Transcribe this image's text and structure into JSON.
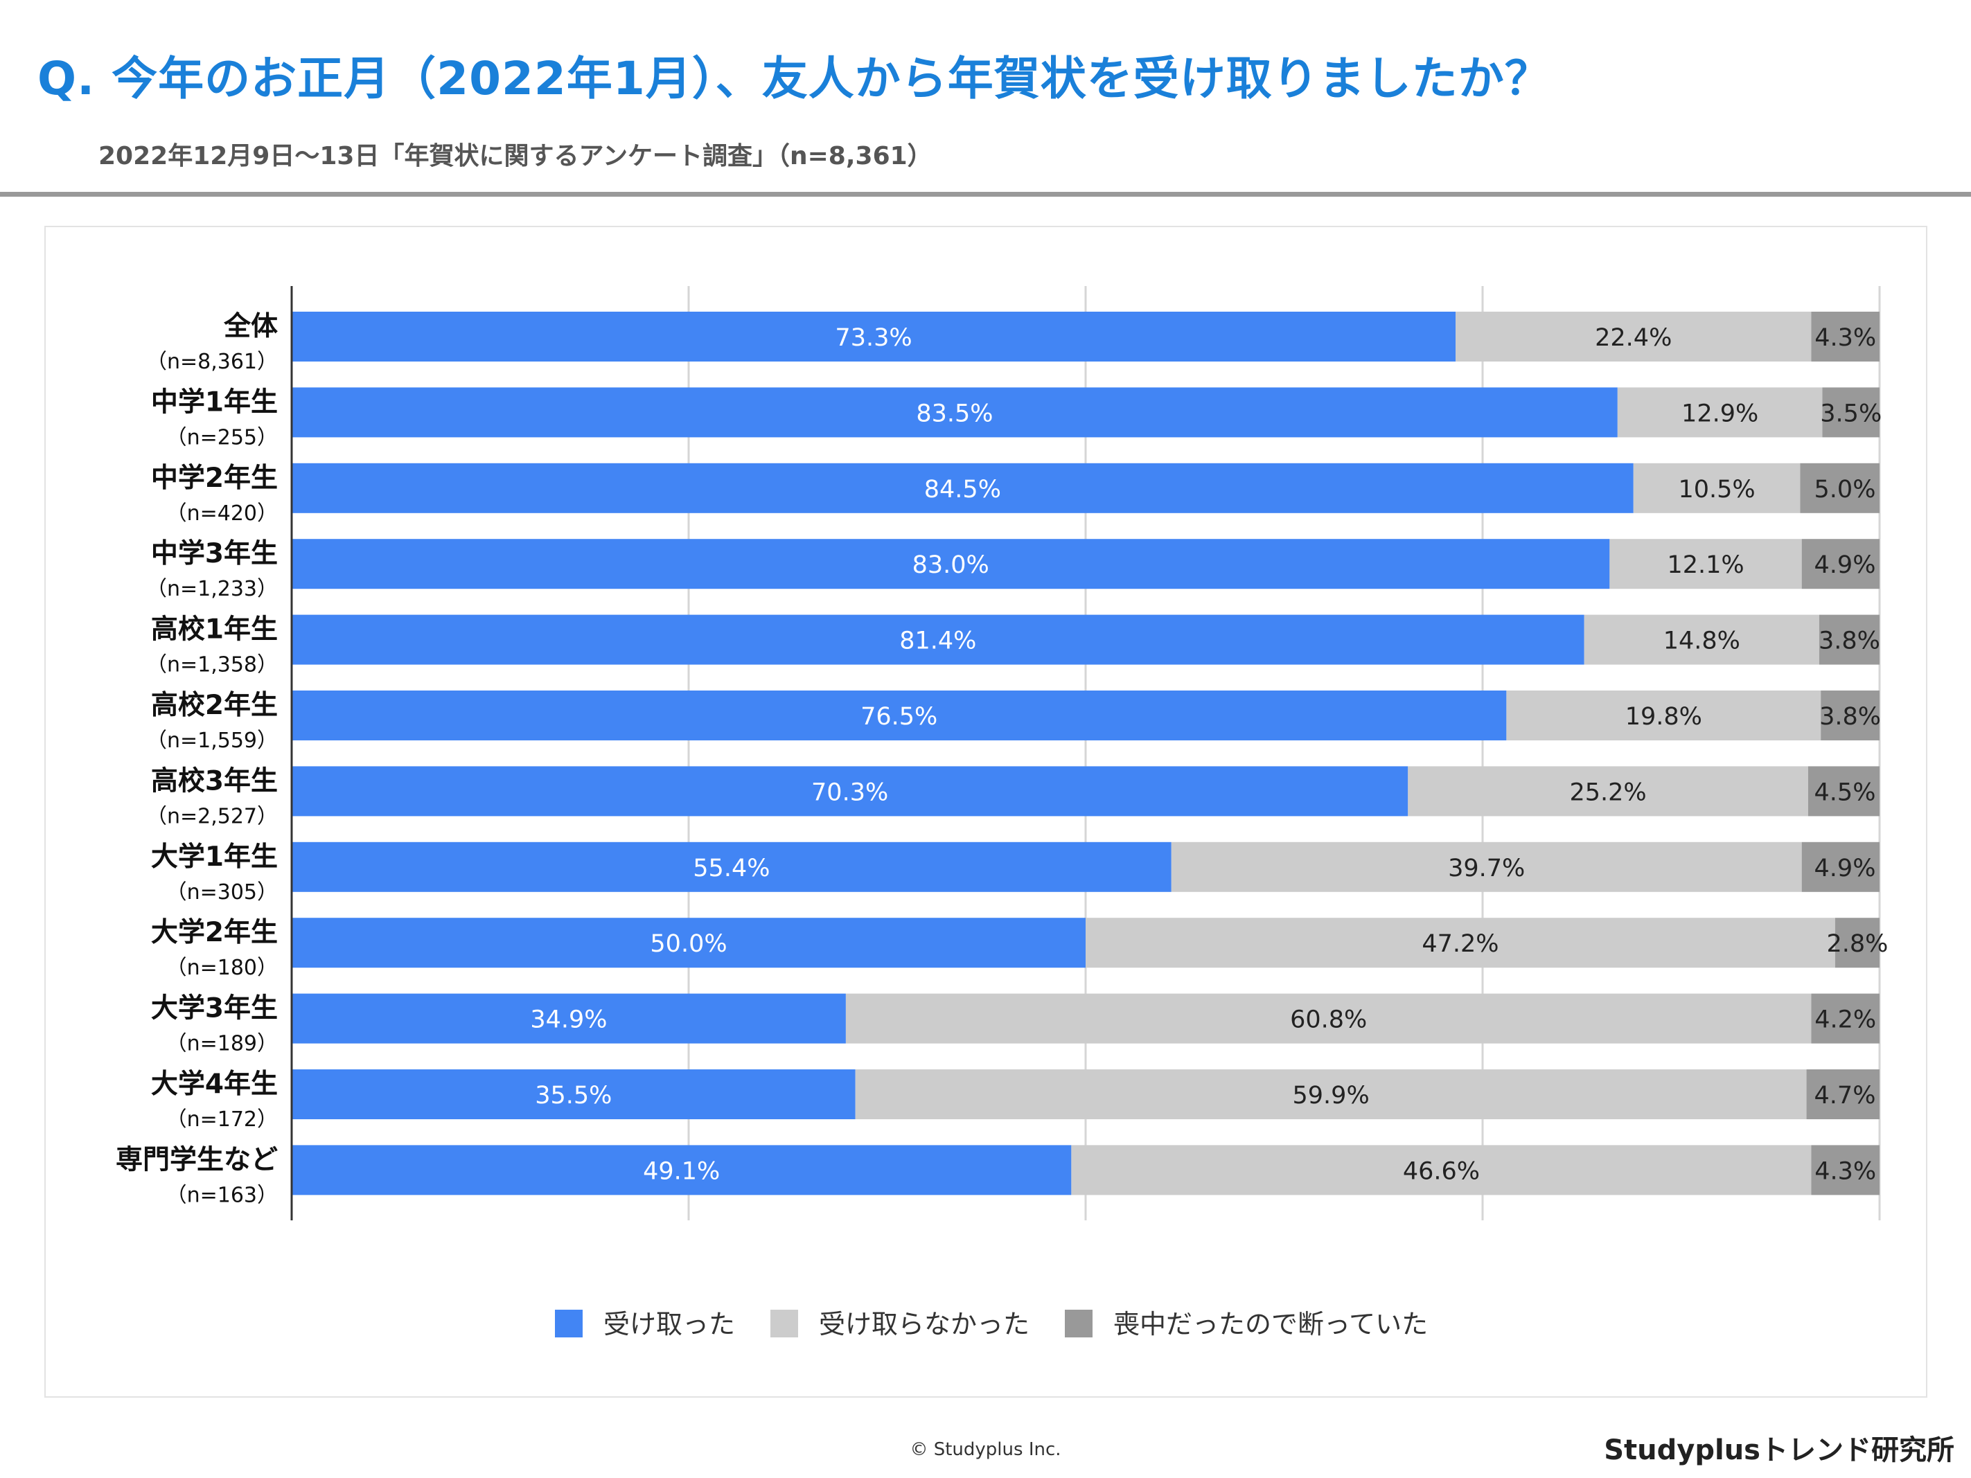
{
  "header": {
    "title": "Q. 今年のお正月（2022年1月）、友人から年賀状を受け取りましたか？",
    "subtitle": "2022年12月9日〜13日「年賀状に関するアンケート調査」（n=8,361）"
  },
  "chart_data": {
    "type": "bar",
    "orientation": "horizontal",
    "stacked": true,
    "title": "Q. 今年のお正月（2022年1月）、友人から年賀状を受け取りましたか？",
    "categories": [
      "全体",
      "中学1年生",
      "中学2年生",
      "中学3年生",
      "高校1年生",
      "高校2年生",
      "高校3年生",
      "大学1年生",
      "大学2年生",
      "大学3年生",
      "大学4年生",
      "専門学生など"
    ],
    "sample_sizes": [
      "（n=8,361）",
      "（n=255）",
      "（n=420）",
      "（n=1,233）",
      "（n=1,358）",
      "（n=1,559）",
      "（n=2,527）",
      "（n=305）",
      "（n=180）",
      "（n=189）",
      "（n=172）",
      "（n=163）"
    ],
    "series": [
      {
        "name": "受け取った",
        "color": "#4285f4",
        "label_color": "#ffffff",
        "values": [
          73.3,
          83.5,
          84.5,
          83.0,
          81.4,
          76.5,
          70.3,
          55.4,
          50.0,
          34.9,
          35.5,
          49.1
        ]
      },
      {
        "name": "受け取らなかった",
        "color": "#cccccc",
        "label_color": "#222222",
        "values": [
          22.4,
          12.9,
          10.5,
          12.1,
          14.8,
          19.8,
          25.2,
          39.7,
          47.2,
          60.8,
          59.9,
          46.6
        ]
      },
      {
        "name": "喪中だったので断っていた",
        "color": "#999999",
        "label_color": "#222222",
        "values": [
          4.3,
          3.5,
          5.0,
          4.9,
          3.8,
          3.8,
          4.5,
          4.9,
          2.8,
          4.2,
          4.7,
          4.3
        ]
      }
    ],
    "xlim": [
      0,
      100
    ],
    "gridlines": [
      0,
      25,
      50,
      75,
      100
    ],
    "value_suffix": "%",
    "legend": "bottom-center"
  },
  "footer": {
    "copyright": "© Studyplus Inc.",
    "brand": "Studyplusトレンド研究所"
  }
}
